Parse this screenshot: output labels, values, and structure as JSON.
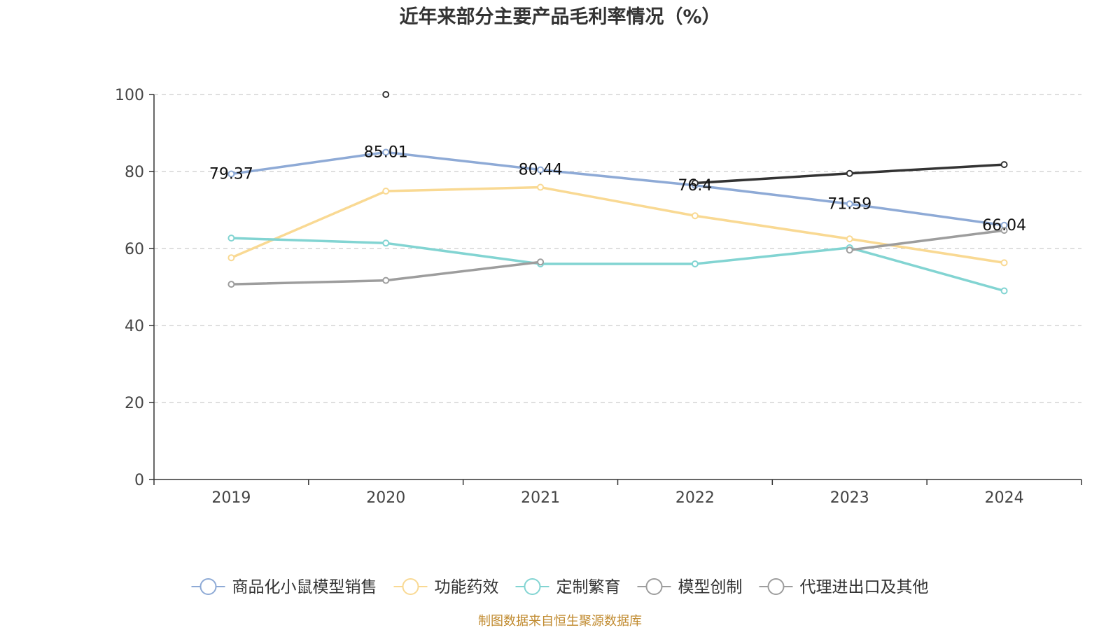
{
  "chart_data": {
    "type": "line",
    "title": "近年来部分主要产品毛利率情况（%）",
    "xlabel": "",
    "ylabel": "",
    "categories": [
      "2019",
      "2020",
      "2021",
      "2022",
      "2023",
      "2024"
    ],
    "ylim": [
      0,
      100
    ],
    "yticks": [
      0,
      20,
      40,
      60,
      80,
      100
    ],
    "grid": "horizontal dashed",
    "legend_position": "bottom",
    "series": [
      {
        "name": "商品化小鼠模型销售",
        "color": "#8eaad6",
        "values": [
          79.37,
          85.01,
          80.44,
          76.4,
          71.59,
          66.04
        ],
        "data_labels": [
          "79.37",
          "85.01",
          "80.44",
          "76.4",
          "71.59",
          "66.04"
        ]
      },
      {
        "name": "功能药效",
        "color": "#f9d993",
        "values": [
          57.6,
          74.9,
          75.9,
          68.5,
          62.5,
          56.3
        ]
      },
      {
        "name": "定制繁育",
        "color": "#82d4d2",
        "values": [
          62.7,
          61.4,
          56.0,
          56.0,
          60.2,
          49.0
        ]
      },
      {
        "name": "模型创制",
        "color": "#333333",
        "values": [
          null,
          100.0,
          null,
          77.0,
          79.5,
          81.8
        ]
      },
      {
        "name": "代理进出口及其他",
        "color": "#9d9d9d",
        "values": [
          50.7,
          51.7,
          56.5,
          null,
          59.6,
          64.7
        ]
      }
    ]
  },
  "source": "制图数据来自恒生聚源数据库"
}
